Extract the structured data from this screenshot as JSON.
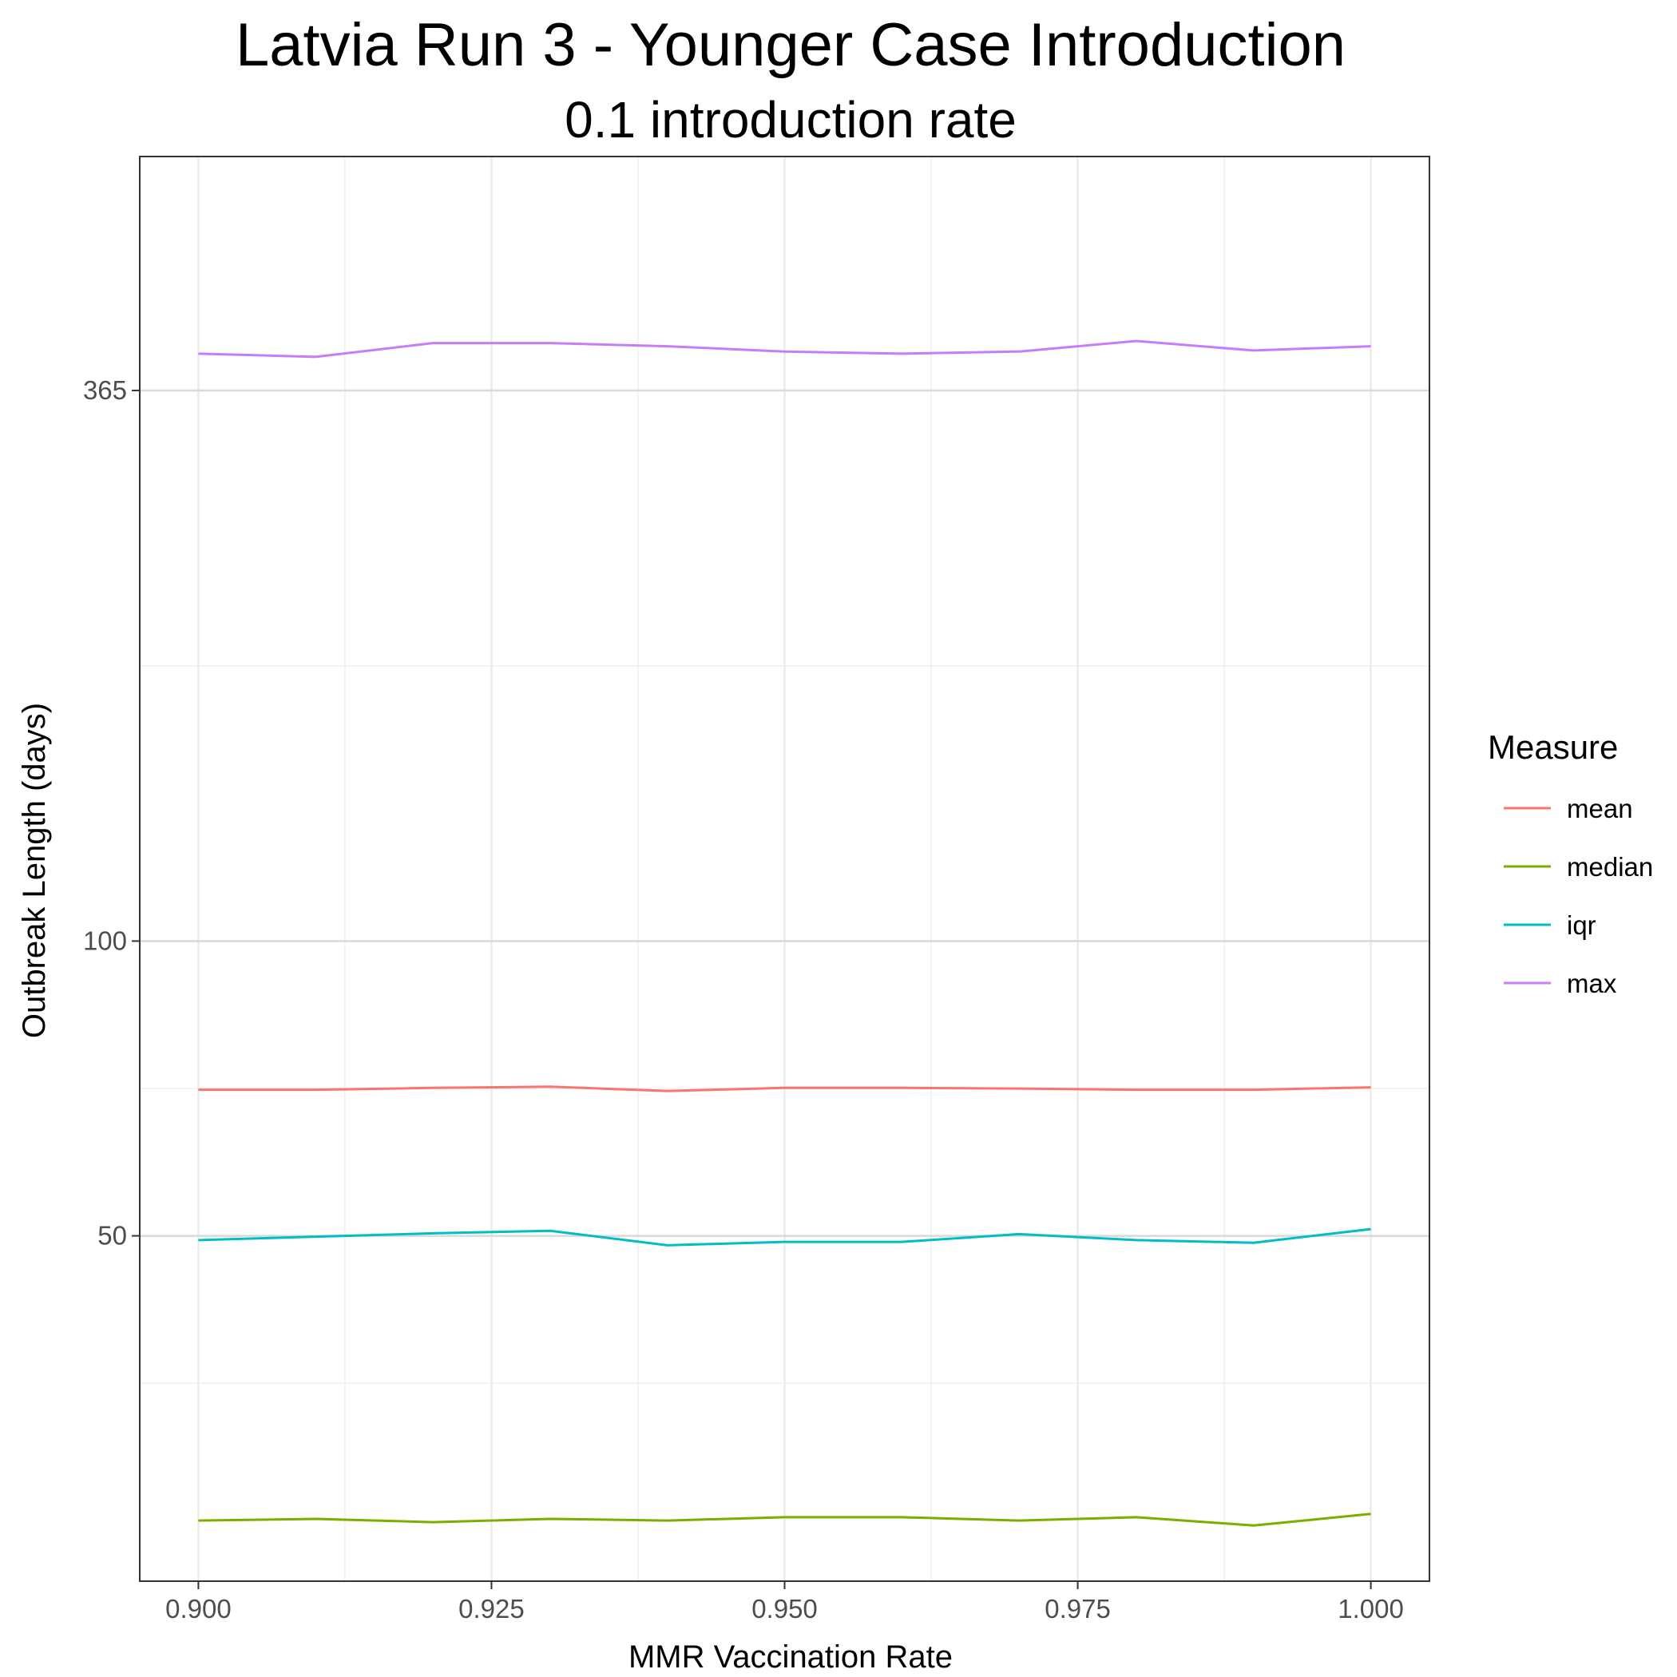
{
  "chart_data": {
    "type": "line",
    "title": "Latvia Run 3 - Younger Case Introduction",
    "subtitle": "0.1 introduction rate",
    "xlabel": "MMR Vaccination Rate",
    "ylabel": "Outbreak Length (days)",
    "xlim": [
      0.895,
      1.005
    ],
    "ylim": [
      3.1,
      6.45
    ],
    "y_scale": "log",
    "x_ticks": [
      0.9,
      0.925,
      0.95,
      0.975,
      1.0
    ],
    "x_tick_labels": [
      "0.900",
      "0.925",
      "0.950",
      "0.975",
      "1.000"
    ],
    "y_ticks": [
      50,
      100,
      365
    ],
    "y_tick_labels": [
      "50",
      "100",
      "365"
    ],
    "grid": true,
    "legend": {
      "title": "Measure",
      "position": "right"
    },
    "x": [
      0.9,
      0.91,
      0.92,
      0.93,
      0.94,
      0.95,
      0.96,
      0.97,
      0.98,
      0.99,
      1.0
    ],
    "series": [
      {
        "name": "mean",
        "color": "#F8766D",
        "values": [
          70.5,
          70.5,
          70.8,
          71.0,
          70.3,
          70.8,
          70.8,
          70.7,
          70.5,
          70.5,
          70.9
        ]
      },
      {
        "name": "median",
        "color": "#7CAE00",
        "values": [
          25.6,
          25.7,
          25.5,
          25.7,
          25.6,
          25.8,
          25.8,
          25.6,
          25.8,
          25.3,
          26.0
        ]
      },
      {
        "name": "iqr",
        "color": "#00BFC4",
        "values": [
          49.5,
          49.9,
          50.3,
          50.6,
          48.9,
          49.3,
          49.3,
          50.2,
          49.5,
          49.2,
          50.8
        ]
      },
      {
        "name": "max",
        "color": "#C77CFF",
        "values": [
          398,
          395,
          408,
          408,
          405,
          400,
          398,
          400,
          410,
          401,
          405
        ]
      }
    ]
  }
}
